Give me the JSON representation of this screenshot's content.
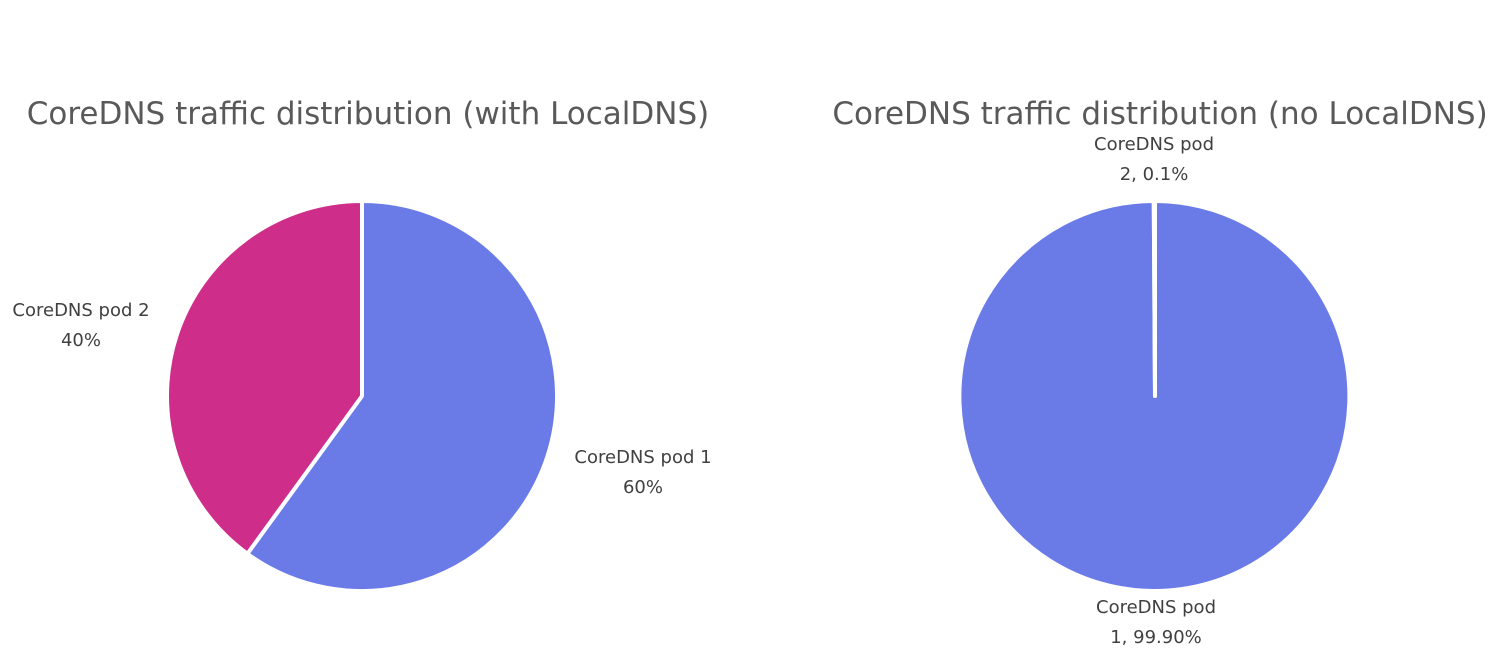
{
  "chart_data": [
    {
      "type": "pie",
      "title": "CoreDNS traffic distribution (with LocalDNS)",
      "slices": [
        {
          "label": "CoreDNS pod 1",
          "value": 60,
          "data_label": [
            "CoreDNS pod 1",
            "60%"
          ],
          "color": "#6a7be8"
        },
        {
          "label": "CoreDNS pod 2",
          "value": 40,
          "data_label": [
            "CoreDNS pod 2",
            "40%"
          ],
          "color": "#cf2d8a"
        }
      ],
      "legend": "none"
    },
    {
      "type": "pie",
      "title": "CoreDNS traffic distribution (no LocalDNS)",
      "slices": [
        {
          "label": "CoreDNS pod 1",
          "value": 99.9,
          "data_label": [
            "CoreDNS pod",
            "1, 99.90%"
          ],
          "color": "#6a7be8"
        },
        {
          "label": "CoreDNS pod 2",
          "value": 0.1,
          "data_label": [
            "CoreDNS pod",
            "2, 0.1%"
          ],
          "color": "#cf2d8a"
        }
      ],
      "legend": "none"
    }
  ]
}
